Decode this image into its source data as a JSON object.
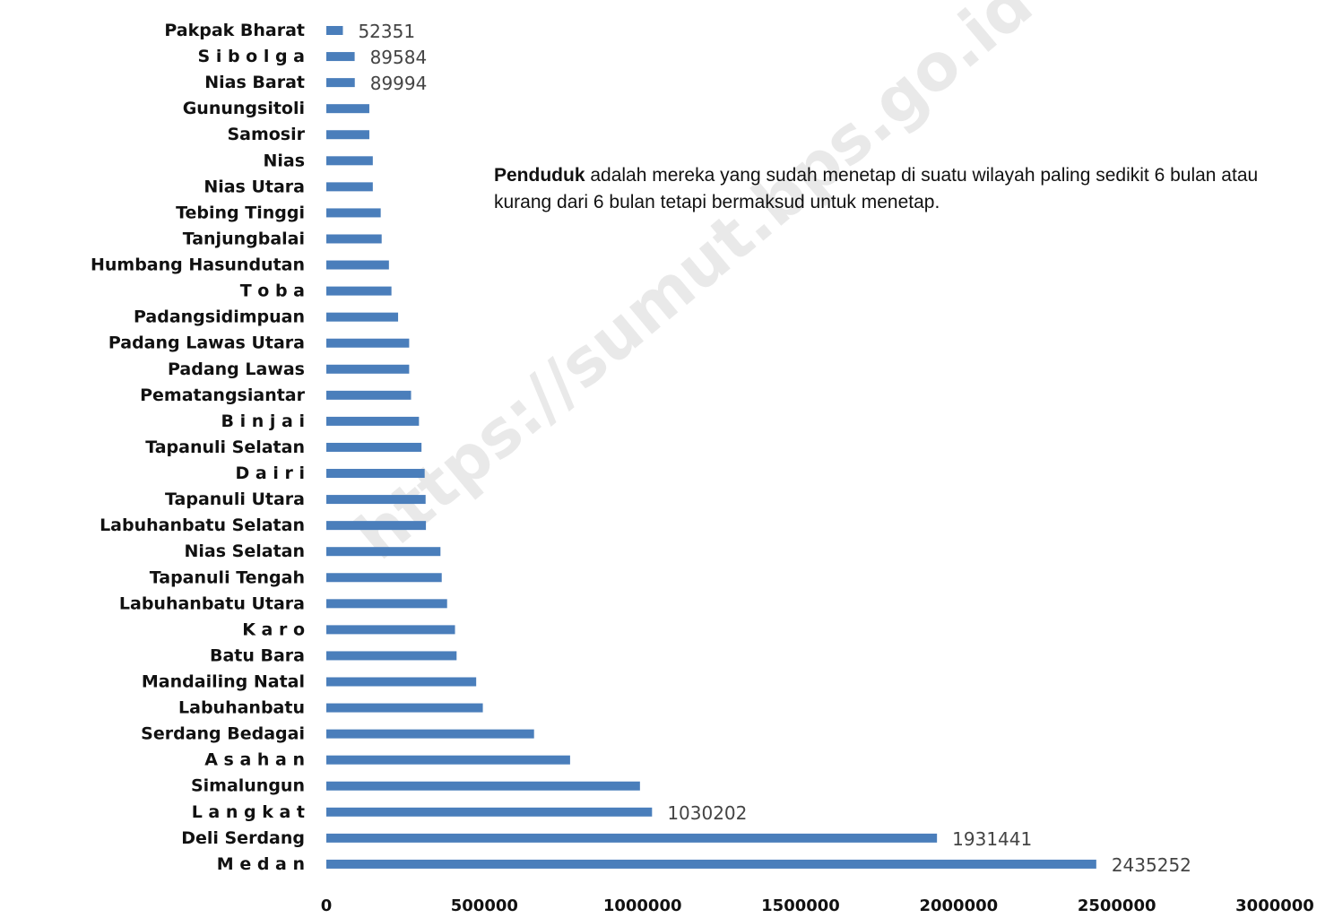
{
  "note": {
    "bold": "Penduduk",
    "text": " adalah mereka yang sudah menetap di suatu wilayah paling sedikit 6 bulan atau kurang dari 6 bulan tetapi bermaksud untuk menetap."
  },
  "watermark": "https://sumut.bps.go.id",
  "chart_data": {
    "type": "bar",
    "orientation": "horizontal",
    "title": "",
    "xlabel": "",
    "ylabel": "",
    "xlim": [
      0,
      3000000
    ],
    "xticks": [
      "0",
      "500000",
      "1000000",
      "1500000",
      "2000000",
      "2500000",
      "3000000"
    ],
    "grid": false,
    "bar_color": "#4a7ebb",
    "categories": [
      "Pakpak Bharat",
      "S i b o l g a",
      "Nias Barat",
      "Gunungsitoli",
      "Samosir",
      "Nias",
      "Nias Utara",
      "Tebing Tinggi",
      "Tanjungbalai",
      "Humbang Hasundutan",
      "T o b a",
      "Padangsidimpuan",
      "Padang Lawas Utara",
      "Padang Lawas",
      "Pematangsiantar",
      "B i n j a i",
      "Tapanuli Selatan",
      "D a i r i",
      "Tapanuli Utara",
      "Labuhanbatu Selatan",
      "Nias Selatan",
      "Tapanuli Tengah",
      "Labuhanbatu Utara",
      "K a r o",
      "Batu Bara",
      "Mandailing Natal",
      "Labuhanbatu",
      "Serdang Bedagai",
      "A s a h a n",
      "Simalungun",
      "L a n g k a t",
      "Deli Serdang",
      "M e d a n"
    ],
    "values": [
      52351,
      89584,
      89994,
      136000,
      136000,
      147000,
      147000,
      172000,
      175000,
      198000,
      206000,
      227000,
      262000,
      262000,
      268000,
      293000,
      301000,
      311000,
      314000,
      315000,
      361000,
      365000,
      382000,
      407000,
      412000,
      474000,
      495000,
      657000,
      771000,
      992000,
      1030202,
      1931441,
      2435252
    ],
    "data_labels": {
      "Pakpak Bharat": "52351",
      "S i b o l g a": "89584",
      "Nias Barat": "89994",
      "L a n g k a t": "1030202",
      "Deli Serdang": "1931441",
      "M e d a n": "2435252"
    }
  }
}
